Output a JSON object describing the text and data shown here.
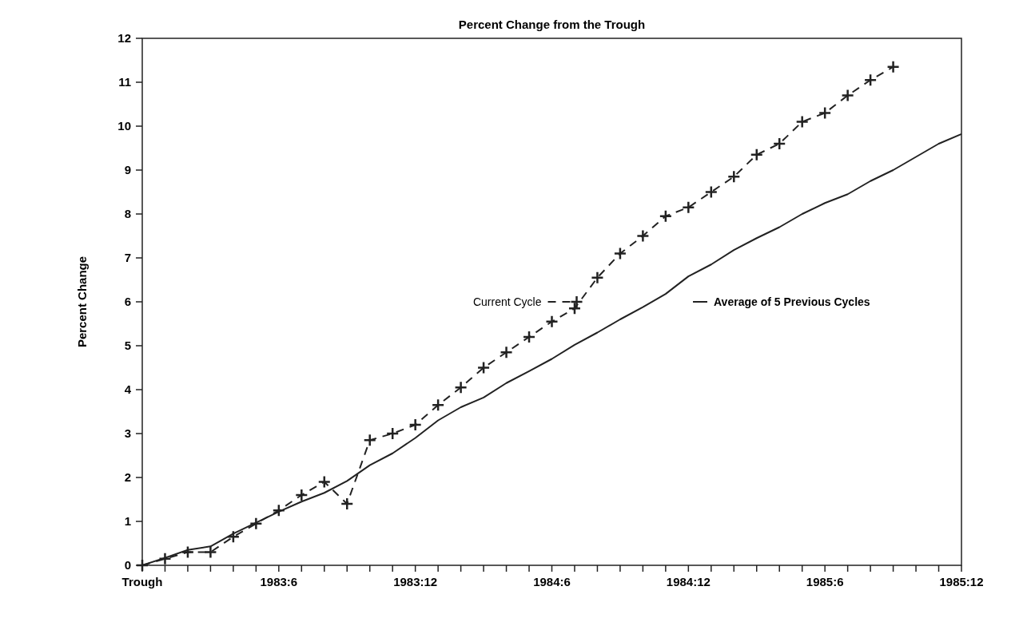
{
  "chart_data": {
    "type": "line",
    "title": "Percent Change from the Trough",
    "ylabel": "Percent Change",
    "categories": [
      "Trough",
      null,
      null,
      null,
      null,
      null,
      "1983:6",
      null,
      null,
      null,
      null,
      null,
      "1983:12",
      null,
      null,
      null,
      null,
      null,
      "1984:6",
      null,
      null,
      null,
      null,
      null,
      "1984:12",
      null,
      null,
      null,
      null,
      null,
      "1985:6",
      null,
      null,
      null,
      null,
      null,
      "1985:12"
    ],
    "ylim": [
      0,
      12
    ],
    "yticks": [
      0,
      1,
      2,
      3,
      4,
      5,
      6,
      7,
      8,
      9,
      10,
      11,
      12
    ],
    "grid": false,
    "legend": "right",
    "series": [
      {
        "name": "Current Cycle",
        "color": "#222222",
        "line_style": "dashed",
        "marker": "cross",
        "values": [
          0,
          0.15,
          0.3,
          0.3,
          0.65,
          0.95,
          1.25,
          1.6,
          1.9,
          1.4,
          2.85,
          3.0,
          3.2,
          3.65,
          4.05,
          4.5,
          4.85,
          5.2,
          5.55,
          5.85,
          6.55,
          7.1,
          7.5,
          7.95,
          8.15,
          8.5,
          8.85,
          9.35,
          9.6,
          10.1,
          10.3,
          10.7,
          11.05,
          11.35,
          null,
          null,
          null
        ]
      },
      {
        "name": "Average of 5 Previous Cycles",
        "color": "#222222",
        "line_style": "solid",
        "marker": "none",
        "values": [
          0,
          0.17,
          0.35,
          0.43,
          0.72,
          0.97,
          1.22,
          1.45,
          1.65,
          1.92,
          2.28,
          2.55,
          2.9,
          3.3,
          3.6,
          3.82,
          4.15,
          4.42,
          4.7,
          5.02,
          5.3,
          5.6,
          5.88,
          6.18,
          6.58,
          6.85,
          7.18,
          7.45,
          7.7,
          8.0,
          8.25,
          8.45,
          8.75,
          9.0,
          9.3,
          9.6,
          9.82
        ]
      }
    ]
  }
}
